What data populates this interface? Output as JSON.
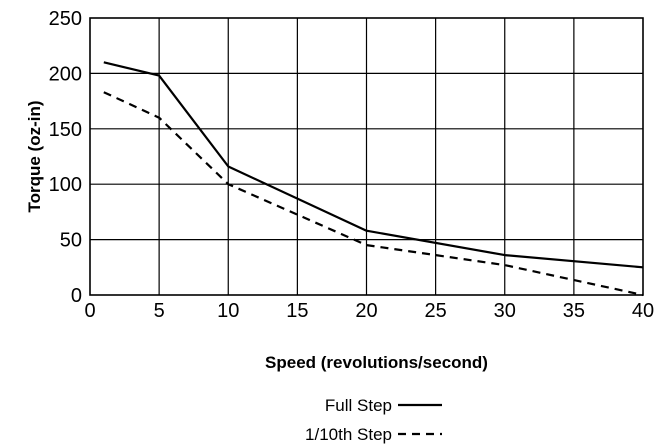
{
  "chart_data": {
    "type": "line",
    "title": "",
    "xlabel": "Speed (revolutions/second)",
    "ylabel": "Torque (oz-in)",
    "xlim": [
      0,
      40
    ],
    "ylim": [
      0,
      250
    ],
    "xticks": [
      0,
      5,
      10,
      15,
      20,
      25,
      30,
      35,
      40
    ],
    "yticks": [
      0,
      50,
      100,
      150,
      200,
      250
    ],
    "grid": true,
    "legend_position": "bottom-center",
    "series": [
      {
        "name": "Full Step",
        "style": "solid",
        "color": "#000000",
        "x": [
          1,
          5,
          10,
          20,
          30,
          40
        ],
        "y": [
          210,
          198,
          116,
          58,
          36,
          25
        ]
      },
      {
        "name": "1/10th Step",
        "style": "dashed",
        "color": "#000000",
        "x": [
          1,
          5,
          10,
          20,
          30,
          40
        ],
        "y": [
          183,
          160,
          100,
          45,
          27,
          0
        ]
      }
    ]
  }
}
